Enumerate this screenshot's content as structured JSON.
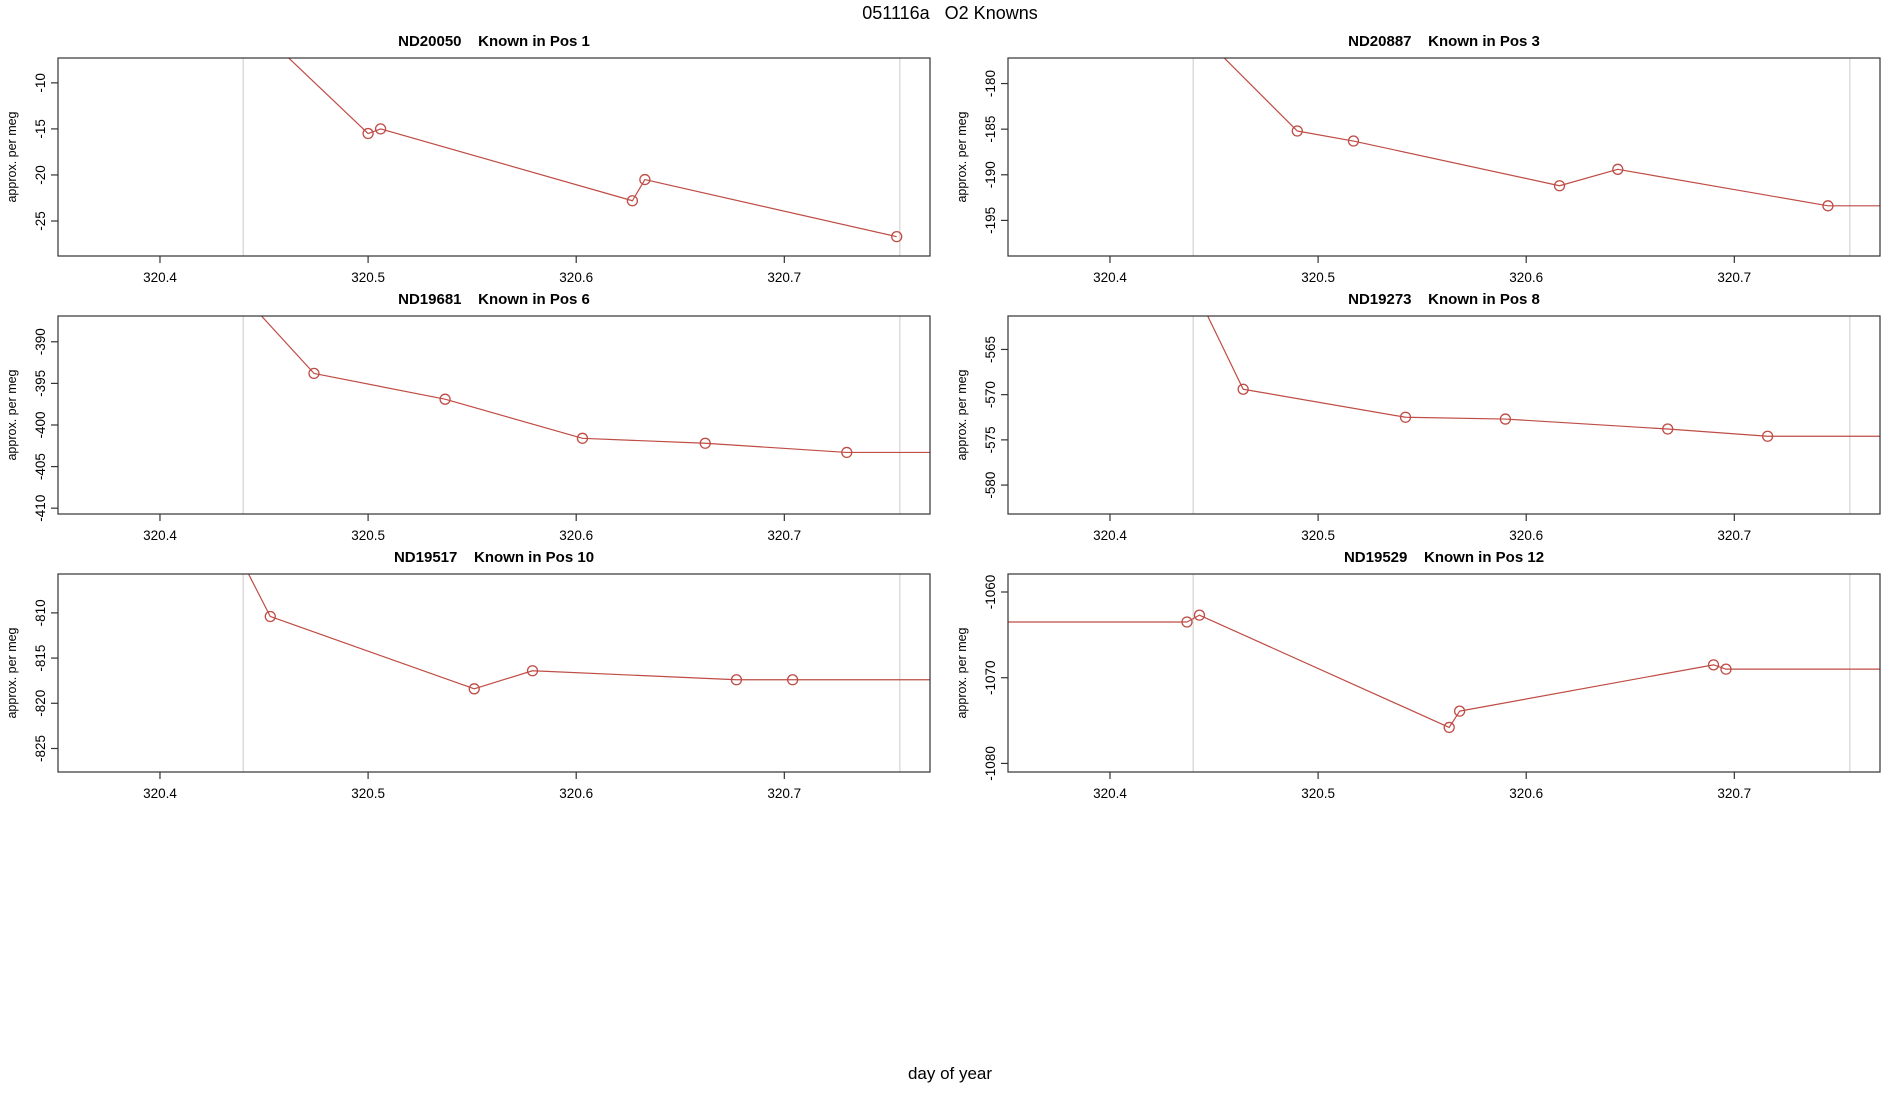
{
  "figure": {
    "title": "051116a   O2 Knowns",
    "xlabel": "day of year",
    "ylabel": "approx. per meg"
  },
  "colors": {
    "series": "#bf4c45",
    "reference_line": "#d9d9d9",
    "axis": "#333333",
    "background": "#ffffff"
  },
  "chart_data": {
    "type": "line",
    "title": "051116a   O2 Knowns",
    "xlabel": "day of year",
    "ylabel": "approx. per meg",
    "xlim": [
      320.351,
      320.77
    ],
    "xticks": [
      320.4,
      320.5,
      320.6,
      320.7
    ],
    "reference_lines_x": [
      320.44,
      320.7555
    ],
    "legend": "none",
    "grid": "off",
    "panels": [
      {
        "title": "ND20050    Known in Pos 1",
        "sample": "ND20050",
        "position": "Pos 1",
        "ylim": [
          -28.8,
          -7.3
        ],
        "yticks": [
          -10,
          -15,
          -20,
          -25
        ],
        "line": [
          [
            320.44,
            -2.6
          ],
          [
            320.5,
            -15.5
          ],
          [
            320.506,
            -15.0
          ],
          [
            320.627,
            -22.8
          ],
          [
            320.633,
            -20.5
          ],
          [
            320.754,
            -26.7
          ]
        ],
        "points": [
          [
            320.5,
            -15.5
          ],
          [
            320.506,
            -15.0
          ],
          [
            320.627,
            -22.8
          ],
          [
            320.633,
            -20.5
          ],
          [
            320.754,
            -26.7
          ]
        ]
      },
      {
        "title": "ND20887    Known in Pos 3",
        "sample": "ND20887",
        "position": "Pos 3",
        "ylim": [
          -198.9,
          -177.2
        ],
        "yticks": [
          -180,
          -185,
          -190,
          -195
        ],
        "line": [
          [
            320.44,
            -173.8
          ],
          [
            320.49,
            -185.2
          ],
          [
            320.517,
            -186.3
          ],
          [
            320.616,
            -191.2
          ],
          [
            320.644,
            -189.4
          ],
          [
            320.745,
            -193.4
          ],
          [
            320.77,
            -193.4
          ]
        ],
        "points": [
          [
            320.49,
            -185.2
          ],
          [
            320.517,
            -186.3
          ],
          [
            320.616,
            -191.2
          ],
          [
            320.644,
            -189.4
          ],
          [
            320.745,
            -193.4
          ]
        ]
      },
      {
        "title": "ND19681    Known in Pos 6",
        "sample": "ND19681",
        "position": "Pos 6",
        "ylim": [
          -410.7,
          -386.9
        ],
        "yticks": [
          -390,
          -395,
          -400,
          -405,
          -410
        ],
        "line": [
          [
            320.44,
            -384.5
          ],
          [
            320.474,
            -393.8
          ],
          [
            320.537,
            -396.9
          ],
          [
            320.603,
            -401.6
          ],
          [
            320.662,
            -402.2
          ],
          [
            320.73,
            -403.3
          ],
          [
            320.77,
            -403.3
          ]
        ],
        "points": [
          [
            320.474,
            -393.8
          ],
          [
            320.537,
            -396.9
          ],
          [
            320.603,
            -401.6
          ],
          [
            320.662,
            -402.2
          ],
          [
            320.73,
            -403.3
          ]
        ]
      },
      {
        "title": "ND19273    Known in Pos 8",
        "sample": "ND19273",
        "position": "Pos 8",
        "ylim": [
          -583.2,
          -561.3
        ],
        "yticks": [
          -565,
          -570,
          -575,
          -580
        ],
        "line": [
          [
            320.44,
            -558.0
          ],
          [
            320.464,
            -569.4
          ],
          [
            320.542,
            -572.5
          ],
          [
            320.59,
            -572.7
          ],
          [
            320.668,
            -573.8
          ],
          [
            320.716,
            -574.6
          ],
          [
            320.77,
            -574.6
          ]
        ],
        "points": [
          [
            320.464,
            -569.4
          ],
          [
            320.542,
            -572.5
          ],
          [
            320.59,
            -572.7
          ],
          [
            320.668,
            -573.8
          ],
          [
            320.716,
            -574.6
          ]
        ]
      },
      {
        "title": "ND19517    Known in Pos 10",
        "sample": "ND19517",
        "position": "Pos 10",
        "ylim": [
          -827.6,
          -805.7
        ],
        "yticks": [
          -810,
          -815,
          -820,
          -825
        ],
        "line": [
          [
            320.441,
            -805.0
          ],
          [
            320.453,
            -810.4
          ],
          [
            320.551,
            -818.4
          ],
          [
            320.579,
            -816.4
          ],
          [
            320.677,
            -817.4
          ],
          [
            320.704,
            -817.4
          ],
          [
            320.77,
            -817.4
          ]
        ],
        "points": [
          [
            320.453,
            -810.4
          ],
          [
            320.551,
            -818.4
          ],
          [
            320.579,
            -816.4
          ],
          [
            320.677,
            -817.4
          ],
          [
            320.704,
            -817.4
          ]
        ]
      },
      {
        "title": "ND19529    Known in Pos 12",
        "sample": "ND19529",
        "position": "Pos 12",
        "ylim": [
          -1081.0,
          -1057.9
        ],
        "yticks": [
          -1060,
          -1070,
          -1080
        ],
        "line": [
          [
            320.351,
            -1063.5
          ],
          [
            320.437,
            -1063.5
          ],
          [
            320.443,
            -1062.7
          ],
          [
            320.563,
            -1075.8
          ],
          [
            320.568,
            -1073.9
          ],
          [
            320.69,
            -1068.5
          ],
          [
            320.696,
            -1069.0
          ],
          [
            320.77,
            -1069.0
          ]
        ],
        "points": [
          [
            320.437,
            -1063.5
          ],
          [
            320.443,
            -1062.7
          ],
          [
            320.563,
            -1075.8
          ],
          [
            320.568,
            -1073.9
          ],
          [
            320.69,
            -1068.5
          ],
          [
            320.696,
            -1069.0
          ]
        ]
      }
    ]
  }
}
